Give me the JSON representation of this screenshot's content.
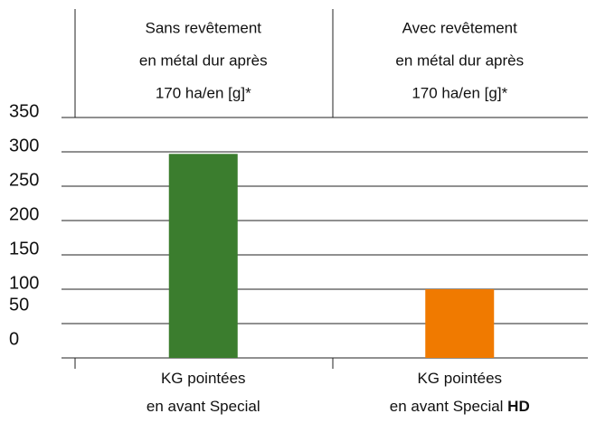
{
  "chart_data": {
    "type": "bar",
    "column_headers": [
      [
        "Sans revêtement",
        "en métal dur après",
        "170 ha/en [g]*"
      ],
      [
        "Avec revêtement",
        "en métal dur après",
        "170 ha/en [g]*"
      ]
    ],
    "categories": [
      [
        [
          {
            "text": "KG pointées"
          }
        ],
        [
          {
            "text": "en avant Special"
          }
        ]
      ],
      [
        [
          {
            "text": "KG pointées"
          }
        ],
        [
          {
            "text": "en avant Special "
          },
          {
            "text": "HD",
            "bold": true
          }
        ]
      ]
    ],
    "values": [
      297,
      100
    ],
    "colors": [
      "#3b7d2e",
      "#f07a00"
    ],
    "ylim": [
      0,
      350
    ],
    "yticks": [
      0,
      50,
      100,
      150,
      200,
      250,
      300,
      350
    ],
    "grid": true
  }
}
